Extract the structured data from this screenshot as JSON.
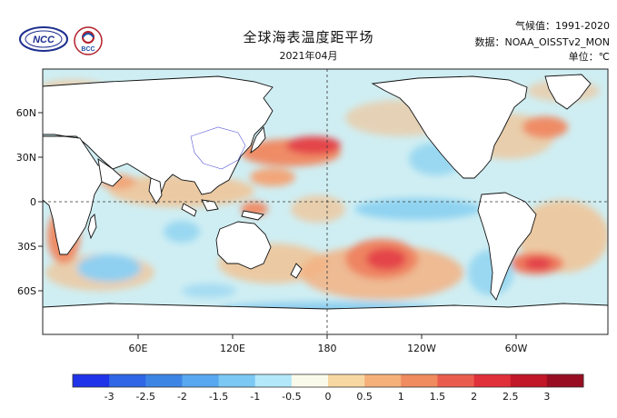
{
  "header": {
    "title": "全球海表温度距平场",
    "subtitle": "2021年04月",
    "climatology": "气候值：1991-2020",
    "dataset": "数据：NOAA_OISSTv2_MON",
    "unit": "单位：℃"
  },
  "logos": {
    "ncc_text": "NCC",
    "bcc_text": "BCC"
  },
  "map": {
    "projection": "equirectangular, Pacific-centred",
    "lat_labels": [
      "60N",
      "30N",
      "0",
      "30S",
      "60S"
    ],
    "lon_labels": [
      "60E",
      "120E",
      "180",
      "120W",
      "60W"
    ]
  },
  "colorbar": {
    "levels": [
      "-3",
      "-2.5",
      "-2",
      "-1.5",
      "-1",
      "-0.5",
      "0",
      "0.5",
      "1",
      "1.5",
      "2",
      "2.5",
      "3"
    ],
    "colors": [
      "#1f33e8",
      "#2f66e6",
      "#3d85e5",
      "#58a8ef",
      "#7cc8f5",
      "#b3e8fa",
      "#fafaea",
      "#f8d8a2",
      "#f5b07a",
      "#f08a5f",
      "#ea5d4e",
      "#e0303a",
      "#c21728",
      "#990d22"
    ]
  },
  "colors": {
    "ocean_background": "#d6eef0",
    "warm_anomaly": "#f0a276",
    "strong_warm": "#e8454a",
    "cool_anomaly": "#7fc7f0",
    "land": "#ffffff"
  }
}
